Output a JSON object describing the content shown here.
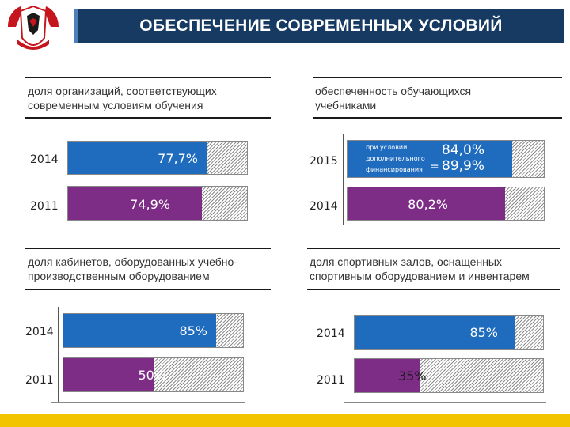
{
  "header": {
    "title": "ОБЕСПЕЧЕНИЕ СОВРЕМЕННЫХ УСЛОВИЙ"
  },
  "colors": {
    "blue": "#1f6cbf",
    "purple": "#7d2d86",
    "title_bg": "#173a63",
    "footer": "#f2c400"
  },
  "icons": {
    "logo": "udmurtia-coat-of-arms-icon"
  },
  "chart_data": [
    {
      "type": "bar",
      "title": "доля организаций, соответствующих современным условиям обучения",
      "categories": [
        "2014",
        "2011"
      ],
      "values": [
        77.7,
        74.9
      ],
      "value_labels": [
        "77,7%",
        "74,9%"
      ],
      "ylim": [
        0,
        100
      ]
    },
    {
      "type": "bar",
      "title": "обеспеченность обучающихся учебниками",
      "categories": [
        "2015",
        "2014"
      ],
      "values": [
        84.0,
        80.2
      ],
      "value_labels": [
        "84,0%",
        "80,2%"
      ],
      "additional_value": 89.9,
      "additional_label": "89,9%",
      "additional_note": [
        "при условии",
        "дополнительного",
        "финансирования"
      ],
      "equals_sign": "=",
      "ylim": [
        0,
        100
      ]
    },
    {
      "type": "bar",
      "title": "доля кабинетов, оборудованных учебно-производственным оборудованием",
      "categories": [
        "2014",
        "2011"
      ],
      "values": [
        85,
        50
      ],
      "value_labels": [
        "85%",
        "50%"
      ],
      "ylim": [
        0,
        100
      ]
    },
    {
      "type": "bar",
      "title": "доля спортивных залов, оснащенных спортивным оборудованием и инвентарем",
      "categories": [
        "2014",
        "2011"
      ],
      "values": [
        85,
        35
      ],
      "value_labels": [
        "85%",
        "35%"
      ],
      "ylim": [
        0,
        100
      ]
    }
  ]
}
